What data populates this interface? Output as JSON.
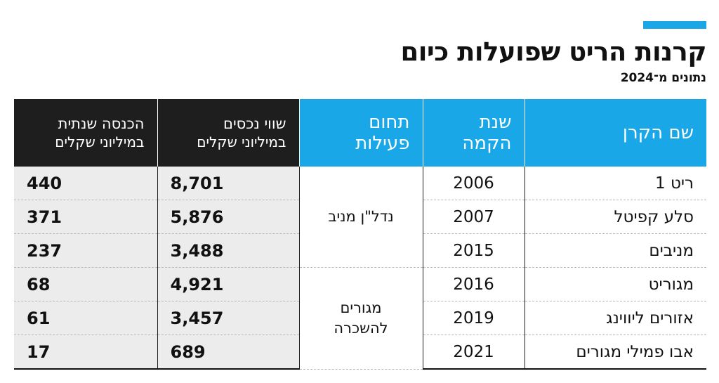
{
  "title": "קרנות הריט שפועלות כיום",
  "subtitle": "נתונים מ־2024",
  "colors": {
    "accent": "#1aa7e8",
    "dark_header": "#1e1e1e",
    "row_shade": "#ececec"
  },
  "headers": {
    "name": "שם הקרן",
    "year_1": "שנת",
    "year_2": "הקמה",
    "field_1": "תחום",
    "field_2": "פעילות",
    "assets_1": "שווי נכסים",
    "assets_2": "במיליוני שקלים",
    "income_1": "הכנסה שנתית",
    "income_2": "במיליוני שקלים"
  },
  "field_groups": [
    "נדל\"ן מניב",
    "מגורים להשכרה"
  ],
  "rows": [
    {
      "name": "ריט 1",
      "year": "2006",
      "assets": "8,701",
      "income": "440"
    },
    {
      "name": "סלע קפיטל",
      "year": "2007",
      "assets": "5,876",
      "income": "371"
    },
    {
      "name": "מניבים",
      "year": "2015",
      "assets": "3,488",
      "income": "237"
    },
    {
      "name": "מגוריט",
      "year": "2016",
      "assets": "4,921",
      "income": "68"
    },
    {
      "name": "אזורים ליווינג",
      "year": "2019",
      "assets": "3,457",
      "income": "61"
    },
    {
      "name": "אבו פמילי מגורים",
      "year": "2021",
      "assets": "689",
      "income": "17"
    }
  ]
}
